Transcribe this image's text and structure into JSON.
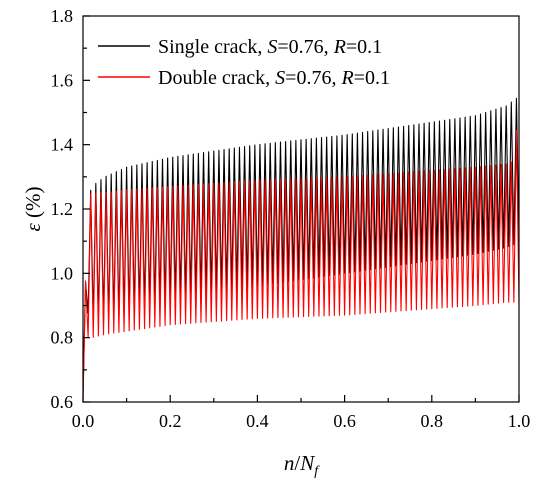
{
  "chart_data": {
    "type": "line",
    "title": "",
    "xlabel": {
      "italic_1": "n",
      "sep": "/",
      "italic_2": "N",
      "sub": "f"
    },
    "ylabel": {
      "symbol": "ε",
      "unit": " (%)"
    },
    "xlim": [
      0.0,
      1.0
    ],
    "ylim": [
      0.6,
      1.8
    ],
    "x_ticks": [
      "0.0",
      "0.2",
      "0.4",
      "0.6",
      "0.8",
      "1.0"
    ],
    "y_ticks": [
      "0.6",
      "0.8",
      "1.0",
      "1.2",
      "1.4",
      "1.6",
      "1.8"
    ],
    "grid": false,
    "legend_position": "top-left",
    "series": [
      {
        "name": "Single crack, S=0.76, R=0.1",
        "legend_parts": [
          "Single crack, ",
          "S",
          "=0.76, ",
          "R",
          "=0.1"
        ],
        "color": "#000000",
        "cycles": 85,
        "envelope_x": [
          0.0,
          0.01,
          0.02,
          0.05,
          0.1,
          0.2,
          0.4,
          0.6,
          0.8,
          0.9,
          0.97,
          0.99,
          1.0
        ],
        "envelope_max": [
          0.62,
          1.22,
          1.27,
          1.3,
          1.33,
          1.36,
          1.4,
          1.43,
          1.47,
          1.49,
          1.52,
          1.54,
          1.55
        ],
        "envelope_min": [
          0.62,
          0.88,
          0.86,
          0.85,
          0.87,
          0.91,
          0.96,
          1.0,
          1.04,
          1.06,
          1.08,
          1.09,
          1.1
        ]
      },
      {
        "name": "Double crack, S=0.76, R=0.1",
        "legend_parts": [
          "Double crack, ",
          "S",
          "=0.76, ",
          "R",
          "=0.1"
        ],
        "color": "#ff0000",
        "cycles": 85,
        "envelope_x": [
          0.0,
          0.01,
          0.02,
          0.05,
          0.1,
          0.2,
          0.4,
          0.6,
          0.8,
          0.9,
          0.97,
          0.99,
          1.0
        ],
        "envelope_max": [
          0.6,
          1.24,
          1.25,
          1.25,
          1.26,
          1.27,
          1.29,
          1.3,
          1.32,
          1.33,
          1.34,
          1.35,
          1.58
        ],
        "envelope_min": [
          0.6,
          0.8,
          0.8,
          0.81,
          0.82,
          0.84,
          0.86,
          0.87,
          0.89,
          0.9,
          0.91,
          0.91,
          0.91
        ]
      }
    ]
  }
}
